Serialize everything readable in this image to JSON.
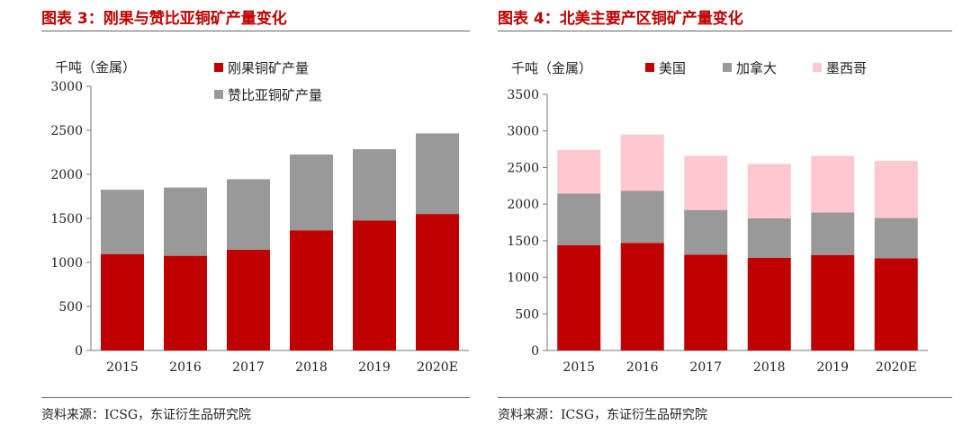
{
  "left": {
    "title": "图表 3：刚果与赞比亚铜矿产量变化",
    "source": "资料来源：ICSG，东证衍生品研究院"
  },
  "right": {
    "title": "图表 4：北美主要产区铜矿产量变化",
    "source": "资料来源：ICSG，东证衍生品研究院"
  },
  "chart_data": [
    {
      "type": "bar",
      "stacked": true,
      "unit_label": "千吨（金属）",
      "categories": [
        "2015",
        "2016",
        "2017",
        "2018",
        "2019",
        "2020E"
      ],
      "ylim": [
        0,
        3000
      ],
      "yticks": [
        0,
        500,
        1000,
        1500,
        2000,
        2500,
        3000
      ],
      "legend_placement": "top",
      "grid": false,
      "series": [
        {
          "name": "刚果铜矿产量",
          "color": "#c00000",
          "values": [
            1095,
            1075,
            1145,
            1365,
            1475,
            1550
          ]
        },
        {
          "name": "赞比亚铜矿产量",
          "color": "#999999",
          "values": [
            730,
            775,
            800,
            860,
            810,
            915
          ]
        }
      ]
    },
    {
      "type": "bar",
      "stacked": true,
      "unit_label": "千吨（金属）",
      "categories": [
        "2015",
        "2016",
        "2017",
        "2018",
        "2019",
        "2020E"
      ],
      "ylim": [
        0,
        3500
      ],
      "yticks": [
        0,
        500,
        1000,
        1500,
        2000,
        2500,
        3000,
        3500
      ],
      "legend_placement": "top",
      "grid": false,
      "series": [
        {
          "name": "美国",
          "color": "#c00000",
          "values": [
            1440,
            1470,
            1310,
            1265,
            1305,
            1260
          ]
        },
        {
          "name": "加拿大",
          "color": "#999999",
          "values": [
            705,
            710,
            610,
            540,
            580,
            550
          ]
        },
        {
          "name": "墨西哥",
          "color": "#ffc7ce",
          "values": [
            595,
            770,
            740,
            745,
            775,
            780
          ]
        }
      ]
    }
  ]
}
